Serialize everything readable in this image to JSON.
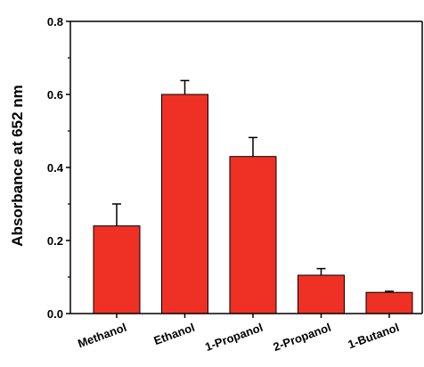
{
  "chart_data": {
    "type": "bar",
    "title": "",
    "xlabel": "",
    "ylabel": "Absorbance at 652 nm",
    "categories": [
      "Methanol",
      "Ethanol",
      "1-Propanol",
      "2-Propanol",
      "1-Butanol"
    ],
    "values": [
      0.24,
      0.6,
      0.43,
      0.105,
      0.058
    ],
    "error_bars": [
      0.06,
      0.038,
      0.052,
      0.018,
      0.003
    ],
    "ylim": [
      0,
      0.8
    ],
    "yticks": [
      "0.0",
      "0.2",
      "0.4",
      "0.6",
      "0.8"
    ],
    "bar_color": "#ee3124",
    "bar_edge_color": "#000000",
    "grid": false,
    "legend": "none"
  }
}
